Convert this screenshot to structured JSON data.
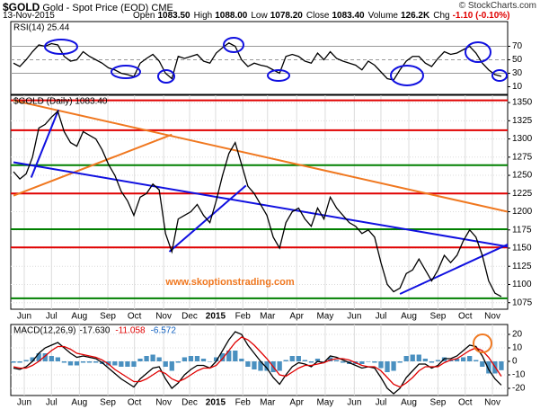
{
  "header": {
    "symbol": "$GOLD",
    "name": "Gold - Spot Price (EOD) CME",
    "date": "13-Nov-2015",
    "credit": "© StockCharts.com",
    "quote": [
      {
        "label": "Open",
        "value": "1083.50"
      },
      {
        "label": "High",
        "value": "1088.00"
      },
      {
        "label": "Low",
        "value": "1078.20"
      },
      {
        "label": "Close",
        "value": "1083.40"
      },
      {
        "label": "Volume",
        "value": "126.2K"
      },
      {
        "label": "Chg",
        "value": "-1.10 (-0.10%)"
      }
    ]
  },
  "chart_data": [
    {
      "type": "line",
      "title": "RSI(14) 25.44",
      "xlim": [
        0,
        78
      ],
      "ylim": [
        0,
        100
      ],
      "yticks": [
        10,
        30,
        50,
        70
      ],
      "hlines": [
        {
          "value": 70,
          "color": "#999999"
        },
        {
          "value": 50,
          "color": "#999999",
          "dash": true
        },
        {
          "value": 30,
          "color": "#999999"
        }
      ],
      "x": [
        0,
        1,
        2,
        3,
        4,
        5,
        6,
        7,
        8,
        9,
        10,
        11,
        12,
        13,
        14,
        15,
        16,
        17,
        18,
        19,
        20,
        21,
        22,
        23,
        24,
        25,
        26,
        27,
        28,
        29,
        30,
        31,
        32,
        33,
        34,
        35,
        36,
        37,
        38,
        39,
        40,
        41,
        42,
        43,
        44,
        45,
        46,
        47,
        48,
        49,
        50,
        51,
        52,
        53,
        54,
        55,
        56,
        57,
        58,
        59,
        60,
        61,
        62,
        63,
        64,
        65,
        66,
        67,
        68,
        69,
        70,
        71,
        72,
        73,
        74,
        75,
        76,
        77
      ],
      "series": [
        {
          "color": "#000000",
          "values": [
            45,
            40,
            50,
            62,
            72,
            70,
            74,
            72,
            55,
            48,
            50,
            62,
            55,
            50,
            45,
            38,
            35,
            30,
            28,
            25,
            45,
            52,
            58,
            48,
            30,
            22,
            55,
            52,
            55,
            58,
            48,
            45,
            60,
            68,
            75,
            70,
            50,
            40,
            45,
            42,
            40,
            35,
            30,
            55,
            58,
            55,
            48,
            45,
            60,
            50,
            62,
            52,
            48,
            45,
            42,
            35,
            48,
            42,
            32,
            22,
            20,
            35,
            48,
            55,
            55,
            45,
            40,
            52,
            62,
            58,
            60,
            65,
            70,
            60,
            45,
            35,
            28,
            25.44
          ]
        }
      ]
    },
    {
      "type": "line",
      "title": "$GOLD (Daily) 1083.40",
      "annotation": "www.skoptionstrading.com",
      "grid": true,
      "xlim": [
        0,
        78
      ],
      "ylim": [
        1066,
        1360
      ],
      "xticks": [
        {
          "value": 1.7,
          "label": "Jun"
        },
        {
          "value": 6,
          "label": "Jul"
        },
        {
          "value": 10.4,
          "label": "Aug"
        },
        {
          "value": 14.9,
          "label": "Sep"
        },
        {
          "value": 19.1,
          "label": "Oct"
        },
        {
          "value": 23.7,
          "label": "Nov"
        },
        {
          "value": 27.8,
          "label": "Dec"
        },
        {
          "value": 31.9,
          "label": "2015"
        },
        {
          "value": 36.2,
          "label": "Feb"
        },
        {
          "value": 40.1,
          "label": "Mar"
        },
        {
          "value": 44.7,
          "label": "Apr"
        },
        {
          "value": 49.2,
          "label": "May"
        },
        {
          "value": 53.8,
          "label": "Jun"
        },
        {
          "value": 58,
          "label": "Jul"
        },
        {
          "value": 62.4,
          "label": "Aug"
        },
        {
          "value": 67,
          "label": "Sep"
        },
        {
          "value": 71.3,
          "label": "Oct"
        },
        {
          "value": 75.6,
          "label": "Nov"
        }
      ],
      "yticks": [
        1075,
        1100,
        1125,
        1150,
        1175,
        1200,
        1225,
        1250,
        1275,
        1300,
        1325,
        1350
      ],
      "hlines": [
        {
          "value": 1353,
          "color": "#e00000"
        },
        {
          "value": 1312,
          "color": "#e00000"
        },
        {
          "value": 1264,
          "color": "#008000"
        },
        {
          "value": 1225,
          "color": "#e00000"
        },
        {
          "value": 1176,
          "color": "#008000"
        },
        {
          "value": 1151,
          "color": "#e00000"
        },
        {
          "value": 1081,
          "color": "#008000"
        }
      ],
      "trendlines": [
        {
          "from": [
            0,
            1353
          ],
          "to": [
            78,
            1200
          ],
          "color": "#f07820"
        },
        {
          "from": [
            0,
            1222
          ],
          "to": [
            25,
            1306
          ],
          "color": "#f07820"
        },
        {
          "from": [
            0,
            1268
          ],
          "to": [
            78,
            1152
          ],
          "color": "#1010e0"
        },
        {
          "from": [
            2.8,
            1247
          ],
          "to": [
            7.1,
            1340
          ],
          "color": "#1010e0"
        },
        {
          "from": [
            24.6,
            1145
          ],
          "to": [
            36.7,
            1236
          ],
          "color": "#1010e0"
        },
        {
          "from": [
            61,
            1087
          ],
          "to": [
            78,
            1155
          ],
          "color": "#1010e0"
        }
      ],
      "x": [
        0,
        1,
        2,
        3,
        4,
        5,
        6,
        7,
        8,
        9,
        10,
        11,
        12,
        13,
        14,
        15,
        16,
        17,
        18,
        19,
        20,
        21,
        22,
        23,
        24,
        25,
        26,
        27,
        28,
        29,
        30,
        31,
        32,
        33,
        34,
        35,
        36,
        37,
        38,
        39,
        40,
        41,
        42,
        43,
        44,
        45,
        46,
        47,
        48,
        49,
        50,
        51,
        52,
        53,
        54,
        55,
        56,
        57,
        58,
        59,
        60,
        61,
        62,
        63,
        64,
        65,
        66,
        67,
        68,
        69,
        70,
        71,
        72,
        73,
        74,
        75,
        76,
        77
      ],
      "series": [
        {
          "color": "#000000",
          "values": [
            1255,
            1245,
            1252,
            1275,
            1315,
            1320,
            1330,
            1338,
            1310,
            1295,
            1290,
            1310,
            1305,
            1300,
            1285,
            1265,
            1250,
            1228,
            1215,
            1195,
            1220,
            1225,
            1238,
            1230,
            1170,
            1145,
            1190,
            1195,
            1200,
            1210,
            1195,
            1185,
            1215,
            1250,
            1280,
            1295,
            1265,
            1235,
            1225,
            1210,
            1195,
            1165,
            1150,
            1185,
            1200,
            1205,
            1190,
            1180,
            1205,
            1190,
            1220,
            1205,
            1195,
            1185,
            1180,
            1170,
            1175,
            1165,
            1130,
            1100,
            1090,
            1095,
            1115,
            1120,
            1135,
            1120,
            1105,
            1120,
            1140,
            1130,
            1140,
            1160,
            1175,
            1165,
            1140,
            1105,
            1088,
            1083.4
          ]
        }
      ]
    },
    {
      "type": "line",
      "title": "MACD(12,26,9)",
      "readings": [
        {
          "text": "-17.630",
          "color": "#000000"
        },
        {
          "text": "-11.058",
          "color": "#e00000"
        },
        {
          "text": "-6.572",
          "color": "#1060c0"
        }
      ],
      "grid": true,
      "xlim": [
        0,
        78
      ],
      "ylim": [
        -25,
        25
      ],
      "xticks": [
        {
          "value": 1.7,
          "label": "Jun"
        },
        {
          "value": 6,
          "label": "Jul"
        },
        {
          "value": 10.4,
          "label": "Aug"
        },
        {
          "value": 14.9,
          "label": "Sep"
        },
        {
          "value": 19.1,
          "label": "Oct"
        },
        {
          "value": 23.7,
          "label": "Nov"
        },
        {
          "value": 27.8,
          "label": "Dec"
        },
        {
          "value": 31.9,
          "label": "2015"
        },
        {
          "value": 36.2,
          "label": "Feb"
        },
        {
          "value": 40.1,
          "label": "Mar"
        },
        {
          "value": 44.7,
          "label": "Apr"
        },
        {
          "value": 49.2,
          "label": "May"
        },
        {
          "value": 53.8,
          "label": "Jun"
        },
        {
          "value": 58,
          "label": "Jul"
        },
        {
          "value": 62.4,
          "label": "Aug"
        },
        {
          "value": 67,
          "label": "Sep"
        },
        {
          "value": 71.3,
          "label": "Oct"
        },
        {
          "value": 75.6,
          "label": "Nov"
        }
      ],
      "yticks": [
        -20,
        -10,
        0,
        10,
        20
      ],
      "x": [
        0,
        1,
        2,
        3,
        4,
        5,
        6,
        7,
        8,
        9,
        10,
        11,
        12,
        13,
        14,
        15,
        16,
        17,
        18,
        19,
        20,
        21,
        22,
        23,
        24,
        25,
        26,
        27,
        28,
        29,
        30,
        31,
        32,
        33,
        34,
        35,
        36,
        37,
        38,
        39,
        40,
        41,
        42,
        43,
        44,
        45,
        46,
        47,
        48,
        49,
        50,
        51,
        52,
        53,
        54,
        55,
        56,
        57,
        58,
        59,
        60,
        61,
        62,
        63,
        64,
        65,
        66,
        67,
        68,
        69,
        70,
        71,
        72,
        73,
        74,
        75,
        76,
        77
      ],
      "series": [
        {
          "type": "bar",
          "color": "#4a90c0",
          "values": [
            -1,
            -1,
            1,
            3,
            6,
            6,
            4,
            3,
            -1,
            -3,
            -3,
            -1,
            -1,
            -1,
            -2,
            -3,
            -3,
            -4,
            -4,
            -4,
            2,
            4,
            5,
            3,
            -4,
            -7,
            -1,
            3,
            4,
            4,
            2,
            0,
            3,
            6,
            8,
            8,
            2,
            -4,
            -6,
            -7,
            -7,
            -8,
            -7,
            1,
            4,
            4,
            1,
            -1,
            2,
            0,
            3,
            1,
            -1,
            -2,
            -2,
            -2,
            0,
            -1,
            -5,
            -8,
            -7,
            -1,
            4,
            5,
            5,
            2,
            -1,
            1,
            3,
            1,
            2,
            3,
            4,
            1,
            -4,
            -9,
            -9,
            -6.572
          ]
        },
        {
          "color": "#000000",
          "values": [
            -5,
            -6,
            -4,
            0,
            6,
            10,
            12,
            14,
            10,
            6,
            3,
            4,
            3,
            2,
            -1,
            -5,
            -9,
            -13,
            -16,
            -19,
            -13,
            -9,
            -5,
            -4,
            -13,
            -20,
            -16,
            -10,
            -6,
            -3,
            -3,
            -5,
            0,
            8,
            16,
            22,
            20,
            12,
            6,
            0,
            -5,
            -12,
            -17,
            -10,
            -4,
            -1,
            -2,
            -4,
            0,
            -1,
            4,
            3,
            1,
            -1,
            -3,
            -5,
            -4,
            -5,
            -12,
            -20,
            -24,
            -20,
            -12,
            -7,
            -2,
            -2,
            -5,
            -3,
            2,
            2,
            4,
            8,
            12,
            11,
            4,
            -6,
            -13,
            -17.63
          ]
        },
        {
          "color": "#e00000",
          "values": [
            -4,
            -5,
            -5,
            -3,
            0,
            4,
            8,
            11,
            11,
            9,
            6,
            5,
            4,
            3,
            1,
            -2,
            -6,
            -9,
            -12,
            -15,
            -15,
            -13,
            -10,
            -7,
            -9,
            -13,
            -15,
            -13,
            -10,
            -7,
            -5,
            -5,
            -3,
            2,
            8,
            14,
            18,
            16,
            12,
            7,
            2,
            -4,
            -10,
            -11,
            -8,
            -5,
            -3,
            -3,
            -2,
            -1,
            1,
            2,
            2,
            1,
            -1,
            -3,
            -4,
            -4,
            -7,
            -12,
            -17,
            -19,
            -16,
            -12,
            -7,
            -4,
            -4,
            -4,
            -1,
            1,
            2,
            5,
            8,
            10,
            8,
            3,
            -4,
            -11.058
          ]
        }
      ]
    }
  ]
}
